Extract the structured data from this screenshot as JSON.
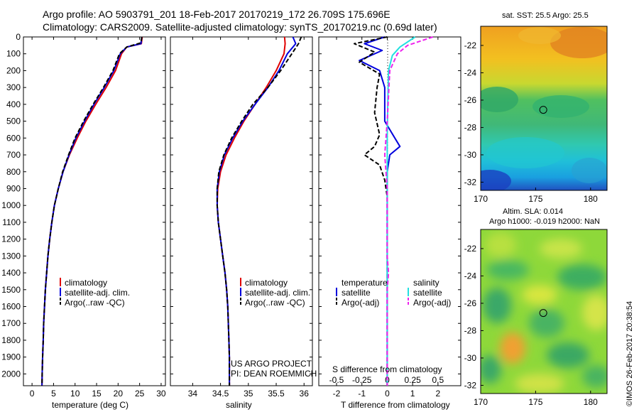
{
  "header": {
    "line1": "Argo profile: AO 5903791_201 18-Feb-2017 20170219_172 26.709S 175.696E",
    "line2": "Climatology: CARS2009. Satellite-adjusted climatology: synTS_20170219.nc (0.69d later)"
  },
  "side_label": "©IMOS 26-Feb-2017 20:38:54",
  "colors": {
    "climatology": "#e00000",
    "satellite": "#0000dd",
    "argo": "#000000",
    "salinity_sat": "#22e0e0",
    "salinity_argo": "#ee22ee"
  },
  "chart_data": [
    {
      "type": "line",
      "xlabel": "temperature (deg C)",
      "xlim": [
        -2,
        31
      ],
      "ylim": [
        0,
        2070
      ],
      "x_ticks": [
        "0",
        "5",
        "10",
        "15",
        "20",
        "25",
        "30"
      ],
      "y_ticks": [
        "0",
        "100",
        "200",
        "300",
        "400",
        "500",
        "600",
        "700",
        "800",
        "900",
        "1000",
        "1100",
        "1200",
        "1300",
        "1400",
        "1500",
        "1600",
        "1700",
        "1800",
        "1900",
        "2000"
      ],
      "legend": [
        "climatology",
        "satellite-adj. clim.",
        "Argo(..raw -QC)"
      ],
      "legend_placement": "bottom-center",
      "series": [
        {
          "name": "climatology",
          "color": "#e00000",
          "style": "solid",
          "points": [
            [
              25.6,
              0
            ],
            [
              25.4,
              40
            ],
            [
              22,
              60
            ],
            [
              20.8,
              100
            ],
            [
              19.4,
              200
            ],
            [
              17.2,
              300
            ],
            [
              14.8,
              400
            ],
            [
              12.5,
              500
            ],
            [
              10.5,
              600
            ],
            [
              8.7,
              700
            ],
            [
              7.2,
              800
            ],
            [
              6.1,
              900
            ],
            [
              5.2,
              1000
            ],
            [
              4.6,
              1100
            ],
            [
              4.1,
              1200
            ],
            [
              3.7,
              1300
            ],
            [
              3.4,
              1400
            ],
            [
              3.1,
              1500
            ],
            [
              2.9,
              1600
            ],
            [
              2.7,
              1700
            ],
            [
              2.6,
              1800
            ],
            [
              2.45,
              1900
            ],
            [
              2.35,
              2000
            ],
            [
              2.3,
              2070
            ]
          ]
        },
        {
          "name": "satellite-adj. clim.",
          "color": "#0000dd",
          "style": "solid",
          "points": [
            [
              25.5,
              0
            ],
            [
              25.3,
              40
            ],
            [
              22,
              60
            ],
            [
              20.5,
              100
            ],
            [
              19,
              200
            ],
            [
              16.8,
              300
            ],
            [
              14.4,
              400
            ],
            [
              12.2,
              500
            ],
            [
              10.2,
              600
            ],
            [
              8.6,
              700
            ],
            [
              7.2,
              800
            ],
            [
              6.1,
              900
            ],
            [
              5.2,
              1000
            ],
            [
              4.6,
              1100
            ],
            [
              4.1,
              1200
            ],
            [
              3.7,
              1300
            ],
            [
              3.4,
              1400
            ],
            [
              3.1,
              1500
            ],
            [
              2.9,
              1600
            ],
            [
              2.7,
              1700
            ],
            [
              2.6,
              1800
            ],
            [
              2.45,
              1900
            ],
            [
              2.35,
              2000
            ],
            [
              2.3,
              2070
            ]
          ]
        },
        {
          "name": "Argo(..raw -QC)",
          "color": "#000000",
          "style": "dashed",
          "points": [
            [
              25.5,
              0
            ],
            [
              25.3,
              35
            ],
            [
              22,
              60
            ],
            [
              20.3,
              100
            ],
            [
              18.8,
              200
            ],
            [
              16.6,
              300
            ],
            [
              14.2,
              400
            ],
            [
              12,
              500
            ],
            [
              10,
              600
            ],
            [
              8.5,
              700
            ],
            [
              7.1,
              800
            ],
            [
              6.1,
              900
            ],
            [
              5.2,
              1000
            ],
            [
              4.6,
              1100
            ],
            [
              4.1,
              1200
            ],
            [
              3.7,
              1300
            ],
            [
              3.4,
              1400
            ],
            [
              3.1,
              1500
            ],
            [
              2.9,
              1600
            ],
            [
              2.7,
              1700
            ],
            [
              2.6,
              1800
            ],
            [
              2.45,
              1900
            ],
            [
              2.35,
              2000
            ],
            [
              2.3,
              2070
            ]
          ]
        }
      ]
    },
    {
      "type": "line",
      "xlabel": "salinity",
      "xlim": [
        33.6,
        36.15
      ],
      "ylim": [
        0,
        2070
      ],
      "x_ticks": [
        "34",
        "34.5",
        "35",
        "35.5",
        "36"
      ],
      "legend": [
        "climatology",
        "satellite-adj. clim.",
        "Argo(..raw -QC)"
      ],
      "legend_placement": "bottom-center",
      "annotations": [
        "US ARGO PROJECT",
        "PI: DEAN ROEMMICH"
      ],
      "series": [
        {
          "name": "climatology",
          "color": "#e00000",
          "style": "solid",
          "points": [
            [
              35.65,
              0
            ],
            [
              35.66,
              40
            ],
            [
              35.64,
              100
            ],
            [
              35.5,
              200
            ],
            [
              35.32,
              300
            ],
            [
              35.12,
              400
            ],
            [
              34.92,
              500
            ],
            [
              34.75,
              600
            ],
            [
              34.6,
              700
            ],
            [
              34.5,
              800
            ],
            [
              34.45,
              900
            ],
            [
              34.44,
              1000
            ],
            [
              34.46,
              1100
            ],
            [
              34.5,
              1200
            ],
            [
              34.54,
              1300
            ],
            [
              34.58,
              1400
            ],
            [
              34.61,
              1500
            ],
            [
              34.63,
              1600
            ],
            [
              34.64,
              1700
            ],
            [
              34.65,
              1800
            ],
            [
              34.66,
              1900
            ],
            [
              34.66,
              2000
            ],
            [
              34.66,
              2070
            ]
          ]
        },
        {
          "name": "satellite-adj. clim.",
          "color": "#0000dd",
          "style": "solid",
          "points": [
            [
              35.8,
              0
            ],
            [
              35.85,
              40
            ],
            [
              35.7,
              100
            ],
            [
              35.55,
              200
            ],
            [
              35.35,
              300
            ],
            [
              35.12,
              400
            ],
            [
              34.9,
              500
            ],
            [
              34.72,
              600
            ],
            [
              34.57,
              700
            ],
            [
              34.48,
              800
            ],
            [
              34.44,
              900
            ],
            [
              34.44,
              1000
            ],
            [
              34.46,
              1100
            ],
            [
              34.5,
              1200
            ],
            [
              34.54,
              1300
            ],
            [
              34.58,
              1400
            ],
            [
              34.61,
              1500
            ],
            [
              34.63,
              1600
            ],
            [
              34.64,
              1700
            ],
            [
              34.65,
              1800
            ],
            [
              34.66,
              1900
            ],
            [
              34.66,
              2000
            ],
            [
              34.66,
              2070
            ]
          ]
        },
        {
          "name": "Argo(..raw -QC)",
          "color": "#000000",
          "style": "dashed",
          "points": [
            [
              35.95,
              0
            ],
            [
              35.9,
              40
            ],
            [
              35.78,
              100
            ],
            [
              35.58,
              200
            ],
            [
              35.35,
              300
            ],
            [
              35.08,
              400
            ],
            [
              34.88,
              500
            ],
            [
              34.7,
              600
            ],
            [
              34.56,
              700
            ],
            [
              34.47,
              800
            ],
            [
              34.44,
              900
            ],
            [
              34.44,
              1000
            ],
            [
              34.46,
              1100
            ],
            [
              34.5,
              1200
            ],
            [
              34.54,
              1300
            ],
            [
              34.58,
              1400
            ],
            [
              34.61,
              1500
            ],
            [
              34.63,
              1600
            ],
            [
              34.64,
              1700
            ],
            [
              34.65,
              1800
            ],
            [
              34.66,
              1900
            ],
            [
              34.66,
              2000
            ],
            [
              34.66,
              2070
            ]
          ]
        }
      ]
    },
    {
      "type": "line",
      "xlabel": "T difference from climatology",
      "xlabel_top": "S difference from climatology",
      "xlim": [
        -2.7,
        2.9
      ],
      "ylim": [
        0,
        2070
      ],
      "x_ticks": [
        "-2",
        "-1",
        "0",
        "1",
        "2"
      ],
      "s_ticks": [
        "-0.5",
        "-0.25",
        "0",
        "0.25",
        "0.5"
      ],
      "legend_groups": [
        {
          "title": "temperature",
          "entries": [
            "satellite",
            "Argo(-adj)"
          ]
        },
        {
          "title": "salinity",
          "entries": [
            "satellite",
            "Argo(-adj)"
          ]
        }
      ],
      "series": [
        {
          "name": "satellite",
          "group": "temperature",
          "color": "#0000dd",
          "style": "solid",
          "points": [
            [
              -0.1,
              0
            ],
            [
              -0.9,
              40
            ],
            [
              -0.2,
              80
            ],
            [
              -1.1,
              140
            ],
            [
              -0.3,
              200
            ],
            [
              -0.1,
              300
            ],
            [
              -0.1,
              500
            ],
            [
              0.3,
              600
            ],
            [
              0.5,
              650
            ],
            [
              0.1,
              700
            ],
            [
              0,
              800
            ],
            [
              0,
              1000
            ],
            [
              0,
              2070
            ]
          ]
        },
        {
          "name": "Argo(-adj)",
          "group": "temperature",
          "color": "#000000",
          "style": "dashed",
          "points": [
            [
              0,
              0
            ],
            [
              -1.3,
              40
            ],
            [
              -0.5,
              90
            ],
            [
              -1.1,
              150
            ],
            [
              -0.3,
              220
            ],
            [
              -0.4,
              300
            ],
            [
              -0.5,
              450
            ],
            [
              -0.3,
              580
            ],
            [
              -0.5,
              650
            ],
            [
              -0.9,
              700
            ],
            [
              -0.3,
              760
            ],
            [
              -0.1,
              850
            ],
            [
              0,
              950
            ],
            [
              0,
              2070
            ]
          ]
        },
        {
          "name": "satellite",
          "group": "salinity",
          "color": "#22e0e0",
          "style": "solid",
          "points": [
            [
              1.1,
              0
            ],
            [
              0.5,
              60
            ],
            [
              0.2,
              110
            ],
            [
              0.05,
              200
            ],
            [
              0.02,
              400
            ],
            [
              0,
              600
            ],
            [
              0,
              2070
            ]
          ]
        },
        {
          "name": "Argo(-adj)",
          "group": "salinity",
          "color": "#ee22ee",
          "style": "dashed",
          "points": [
            [
              1.8,
              0
            ],
            [
              0.8,
              50
            ],
            [
              0.4,
              100
            ],
            [
              0.1,
              200
            ],
            [
              0.05,
              350
            ],
            [
              0,
              500
            ],
            [
              -0.1,
              700
            ],
            [
              0,
              900
            ],
            [
              0,
              1300
            ],
            [
              0.05,
              1400
            ],
            [
              0,
              1500
            ],
            [
              0,
              2070
            ]
          ]
        }
      ]
    },
    {
      "type": "heatmap",
      "title": "sat. SST: 25.5  Argo: 25.5",
      "xlim": [
        170,
        181.5
      ],
      "ylim": [
        -32.6,
        -20.6
      ],
      "x_ticks": [
        "170",
        "175",
        "180"
      ],
      "y_ticks": [
        "-22",
        "-24",
        "-26",
        "-28",
        "-30",
        "-32"
      ],
      "marker": {
        "lon": 175.696,
        "lat": -26.709
      }
    },
    {
      "type": "heatmap",
      "title": "Altim. SLA: 0.014",
      "subtitle": "Argo h1000: -0.019 h2000: NaN",
      "xlim": [
        170,
        181.5
      ],
      "ylim": [
        -32.6,
        -20.6
      ],
      "x_ticks": [
        "170",
        "175",
        "180"
      ],
      "y_ticks": [
        "-22",
        "-24",
        "-26",
        "-28",
        "-30",
        "-32"
      ],
      "marker": {
        "lon": 175.696,
        "lat": -26.709
      }
    }
  ]
}
